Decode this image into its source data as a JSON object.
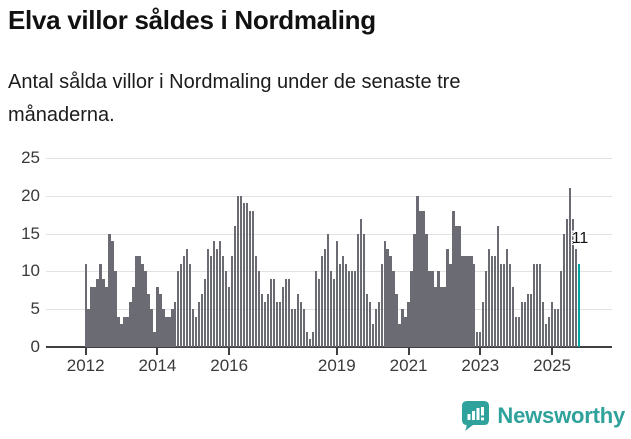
{
  "header": {
    "title": "Elva villor såldes i Nordmaling",
    "subtitle_lines": [
      "Antal sålda villor i Nordmaling under de senaste tre",
      "månaderna."
    ]
  },
  "chart_data": {
    "type": "bar",
    "title": "Elva villor såldes i Nordmaling",
    "xlabel": "",
    "ylabel": "",
    "ylim": [
      0,
      25
    ],
    "grid": true,
    "legend": false,
    "y_ticks": [
      0,
      5,
      10,
      15,
      20,
      25
    ],
    "x_tick_labels": [
      "2012",
      "2014",
      "2016",
      "2019",
      "2021",
      "2023",
      "2025"
    ],
    "x_tick_month_indices": [
      0,
      24,
      48,
      84,
      108,
      132,
      156
    ],
    "values": [
      11,
      5,
      8,
      8,
      9,
      11,
      9,
      8,
      15,
      14,
      10,
      4,
      3,
      4,
      4,
      6,
      8,
      12,
      12,
      11,
      10,
      7,
      5,
      2,
      8,
      7,
      5,
      4,
      4,
      5,
      6,
      10,
      11,
      12,
      13,
      11,
      5,
      4,
      6,
      7,
      9,
      13,
      12,
      14,
      13,
      14,
      12,
      10,
      8,
      12,
      16,
      20,
      20,
      19,
      19,
      18,
      18,
      12,
      10,
      7,
      6,
      7,
      9,
      9,
      6,
      6,
      8,
      9,
      9,
      5,
      5,
      7,
      6,
      5,
      2,
      1,
      2,
      10,
      9,
      12,
      13,
      15,
      10,
      9,
      14,
      11,
      12,
      11,
      10,
      10,
      10,
      15,
      17,
      15,
      7,
      6,
      3,
      5,
      6,
      11,
      14,
      13,
      12,
      10,
      7,
      3,
      5,
      4,
      6,
      10,
      15,
      20,
      18,
      18,
      15,
      10,
      10,
      8,
      10,
      8,
      8,
      13,
      11,
      18,
      16,
      16,
      12,
      12,
      12,
      12,
      11,
      2,
      2,
      6,
      10,
      13,
      12,
      12,
      16,
      11,
      11,
      13,
      11,
      8,
      4,
      4,
      6,
      6,
      7,
      7,
      11,
      11,
      11,
      6,
      3,
      4,
      6,
      5,
      5,
      10,
      15,
      17,
      21,
      17,
      13,
      11
    ],
    "bar_color": "#6b6b73",
    "highlight": {
      "index_from_end": 1,
      "value": 11,
      "label": "11",
      "color": "#00a5a2"
    }
  },
  "footer": {
    "brand_name": "Newsworthy"
  },
  "colors": {
    "bar_gray": "#6b6b73",
    "accent_teal": "#00a5a2",
    "logo_teal": "#2fa29c",
    "grid": "#e2e2e2",
    "axis": "#404040"
  }
}
